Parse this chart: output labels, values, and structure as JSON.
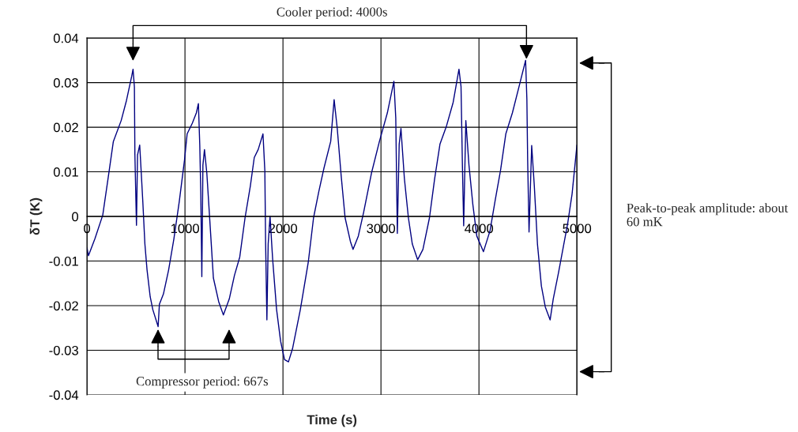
{
  "chart_data": {
    "type": "line",
    "xlabel": "Time (s)",
    "ylabel": "δT (K)",
    "xlim": [
      0,
      5000
    ],
    "xticks": [
      0,
      1000,
      2000,
      3000,
      4000,
      5000
    ],
    "ylim": [
      -0.04,
      0.04
    ],
    "yticks": [
      -0.04,
      -0.03,
      -0.02,
      -0.01,
      0,
      0.01,
      0.02,
      0.03,
      0.04
    ],
    "grid": true,
    "marker": "none",
    "line_style": "solid",
    "annotations": [
      "Cooler period: 4000s",
      "Compressor period: 667s",
      "Peak-to-peak amplitude: about 60 mK"
    ],
    "series": [
      {
        "color": "#000080",
        "x": [
          0,
          15,
          81,
          161,
          215,
          269,
          349,
          403,
          457,
          470,
          484,
          489,
          505,
          516,
          538,
          554,
          570,
          591,
          613,
          645,
          672,
          726,
          739,
          780,
          833,
          887,
          941,
          995,
          1022,
          1075,
          1116,
          1137,
          1151,
          1161,
          1172,
          1183,
          1199,
          1223,
          1250,
          1290,
          1344,
          1392,
          1452,
          1505,
          1559,
          1613,
          1667,
          1707,
          1747,
          1796,
          1815,
          1823,
          1836,
          1849,
          1868,
          1895,
          1935,
          1976,
          2016,
          2056,
          2097,
          2177,
          2258,
          2312,
          2366,
          2419,
          2487,
          2522,
          2554,
          2594,
          2634,
          2688,
          2715,
          2769,
          2823,
          2903,
          2984,
          3065,
          3132,
          3151,
          3167,
          3186,
          3204,
          3239,
          3280,
          3320,
          3374,
          3428,
          3495,
          3548,
          3602,
          3669,
          3737,
          3796,
          3817,
          3831,
          3844,
          3866,
          3898,
          3938,
          3978,
          4046,
          4113,
          4167,
          4220,
          4274,
          4341,
          4409,
          4476,
          4489,
          4497,
          4511,
          4538,
          4565,
          4597,
          4637,
          4677,
          4726,
          4758,
          4812,
          4866,
          4906,
          4950,
          5000
        ],
        "values": [
          -0.007,
          -0.0088,
          -0.005,
          0.0003,
          0.0085,
          0.0168,
          0.0215,
          0.026,
          0.0315,
          0.033,
          0.029,
          0.0138,
          -0.002,
          0.0138,
          0.016,
          0.0097,
          0.0032,
          -0.0062,
          -0.012,
          -0.018,
          -0.0209,
          -0.0247,
          -0.0197,
          -0.0174,
          -0.012,
          -0.005,
          0.0032,
          0.0126,
          0.0185,
          0.0209,
          0.0232,
          0.0253,
          0.016,
          0.0056,
          -0.0135,
          0.0115,
          0.015,
          0.0097,
          0.0003,
          -0.0138,
          -0.0191,
          -0.0221,
          -0.0185,
          -0.0132,
          -0.0091,
          -0.0003,
          0.0068,
          0.0132,
          0.015,
          0.0185,
          0.0103,
          -0.0062,
          -0.0232,
          -0.0062,
          0.0,
          -0.0097,
          -0.0209,
          -0.028,
          -0.0321,
          -0.0326,
          -0.0297,
          -0.0209,
          -0.0103,
          -0.0003,
          0.0056,
          0.0109,
          0.0168,
          0.0262,
          0.0197,
          0.0091,
          -0.0003,
          -0.0056,
          -0.0074,
          -0.0044,
          0.0009,
          0.0097,
          0.0168,
          0.0232,
          0.0303,
          0.0221,
          -0.0038,
          0.0162,
          0.0197,
          0.0085,
          -0.0003,
          -0.0062,
          -0.0097,
          -0.0074,
          -0.0003,
          0.0085,
          0.0162,
          0.0203,
          0.0256,
          0.033,
          0.0291,
          0.0115,
          -0.0021,
          0.0215,
          0.0115,
          0.0026,
          -0.0044,
          -0.0079,
          -0.0032,
          0.0038,
          0.0103,
          0.0185,
          0.0232,
          0.0291,
          0.035,
          0.0262,
          0.0126,
          -0.0035,
          0.0159,
          0.0068,
          -0.0062,
          -0.0156,
          -0.0203,
          -0.0232,
          -0.0185,
          -0.0126,
          -0.0062,
          -0.0015,
          0.005,
          0.016
        ]
      }
    ]
  }
}
